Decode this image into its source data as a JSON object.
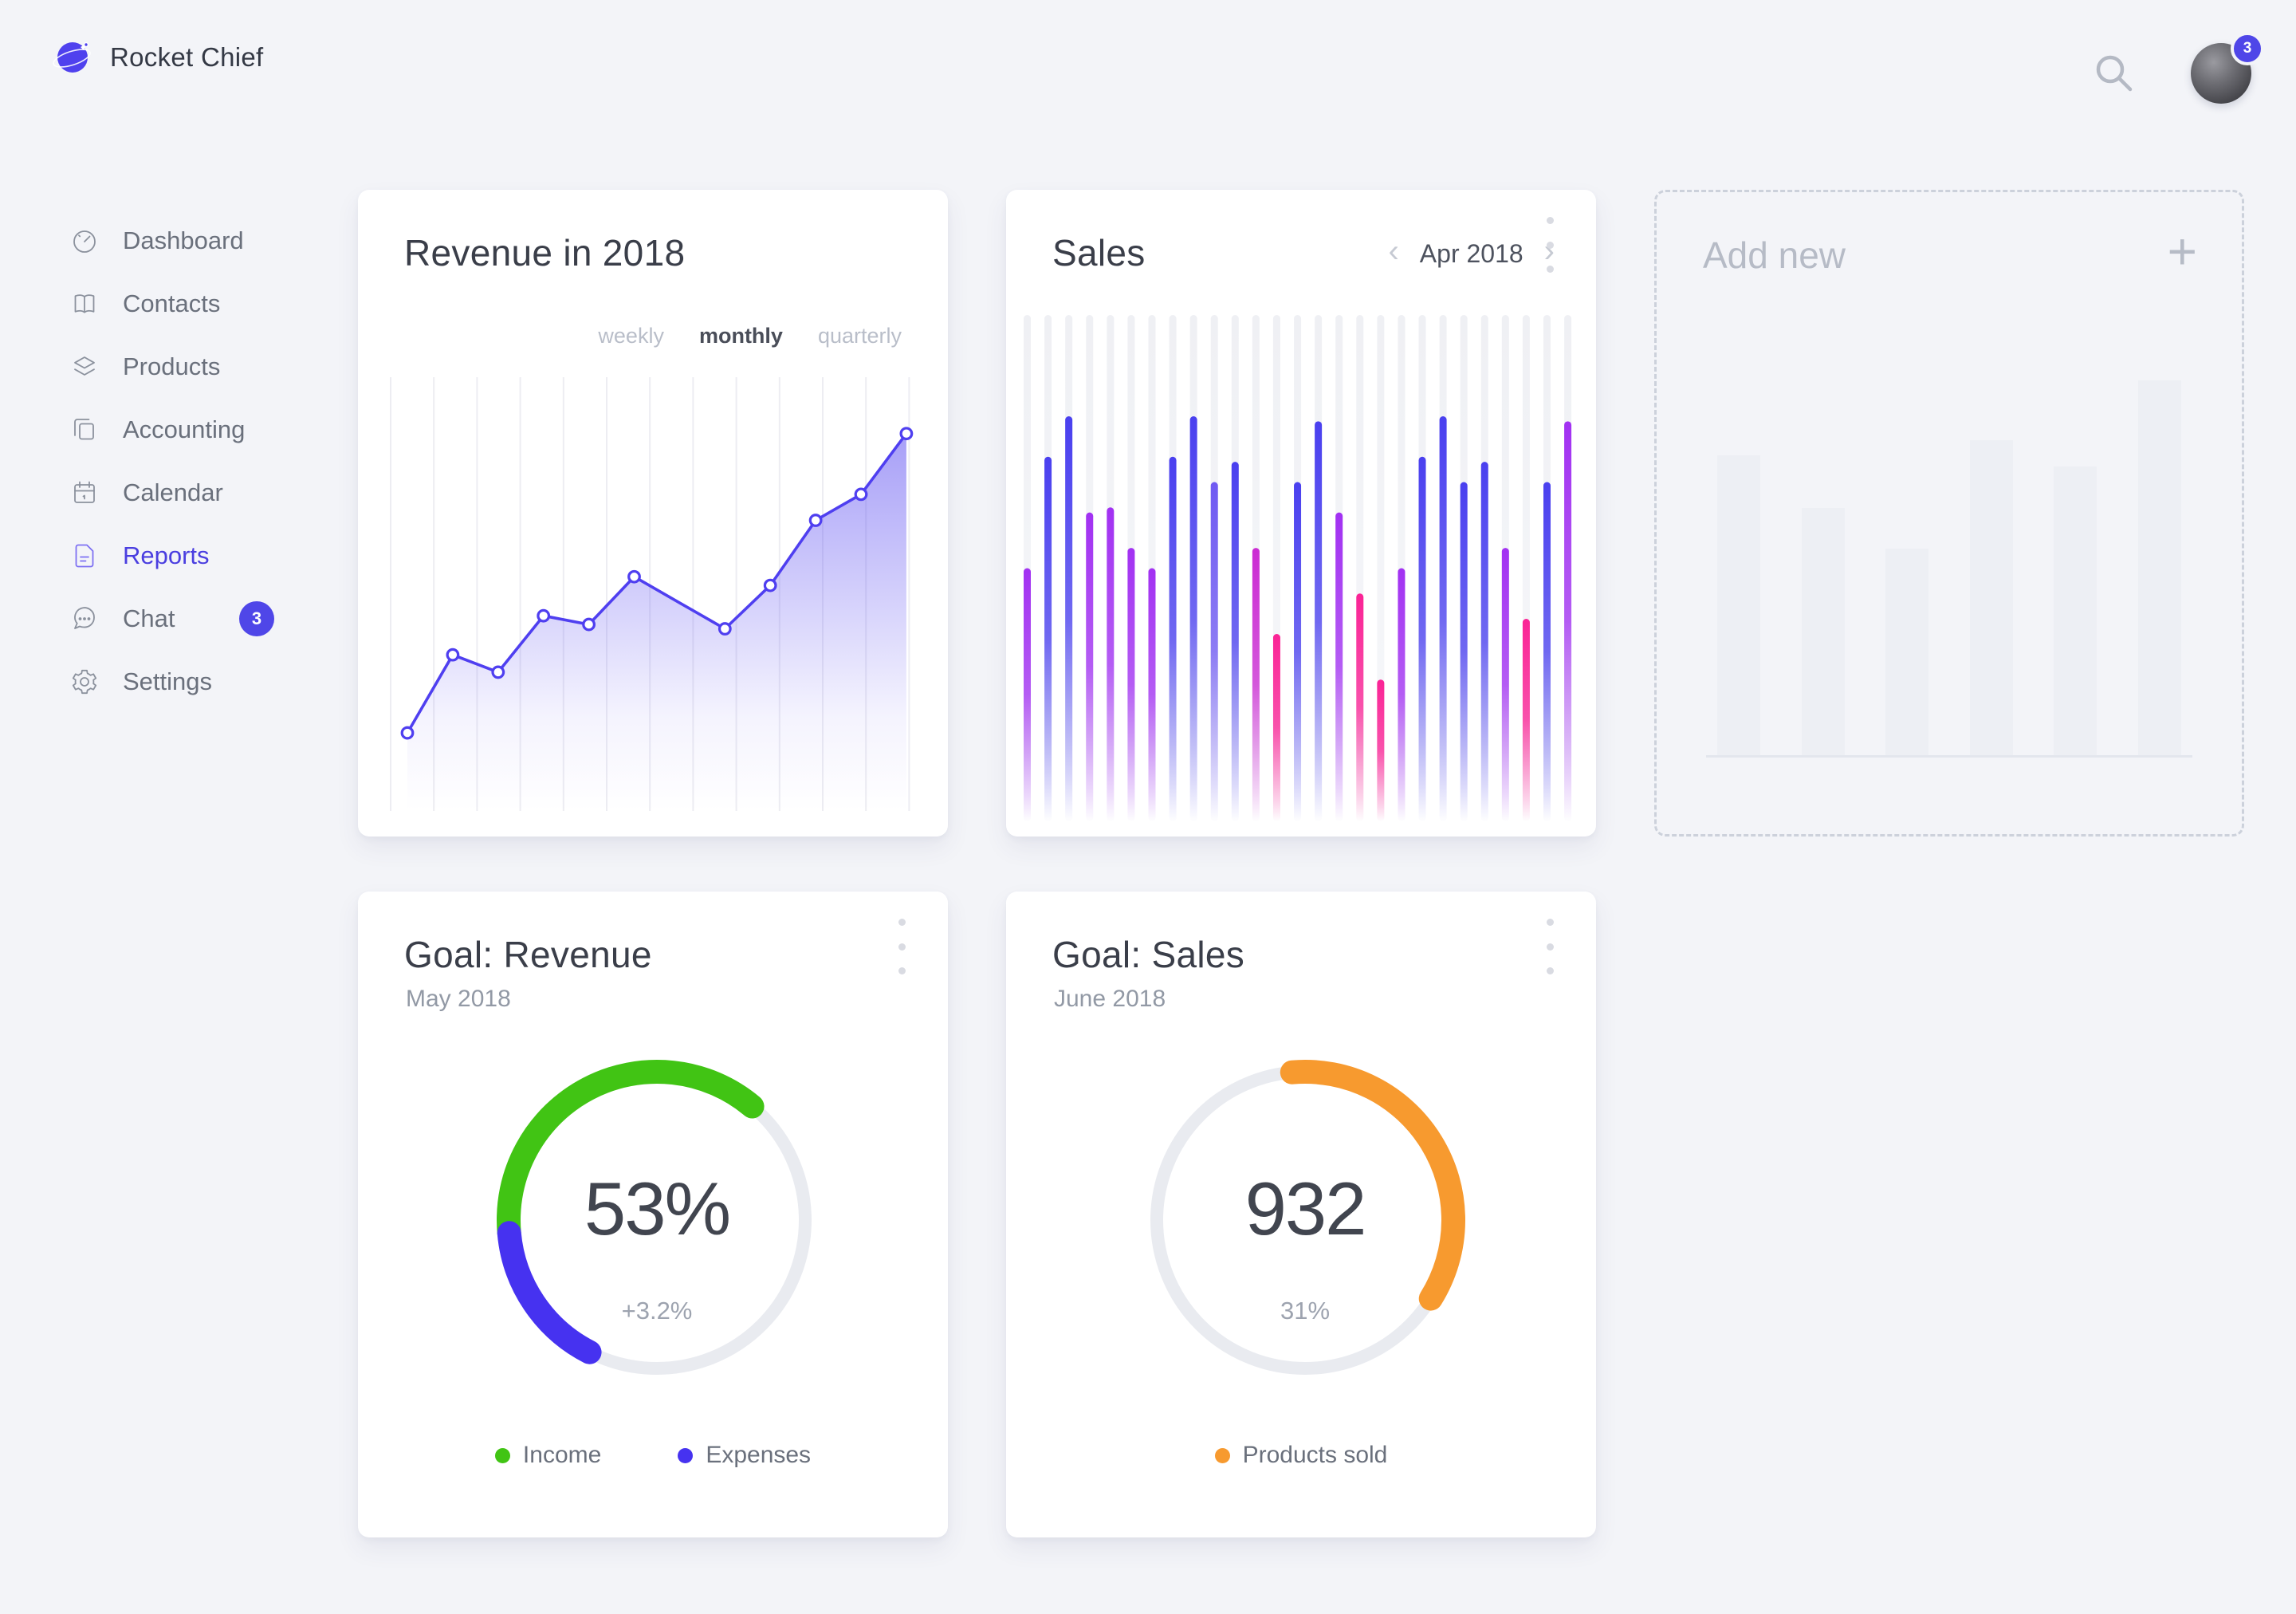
{
  "app": {
    "brand": "Rocket Chief"
  },
  "header": {
    "search_icon": "magnifier",
    "avatar_badge": "3"
  },
  "sidebar": {
    "items": [
      {
        "label": "Dashboard",
        "icon": "gauge-icon",
        "active": false
      },
      {
        "label": "Contacts",
        "icon": "book-icon",
        "active": false
      },
      {
        "label": "Products",
        "icon": "layers-icon",
        "active": false
      },
      {
        "label": "Accounting",
        "icon": "copy-icon",
        "active": false
      },
      {
        "label": "Calendar",
        "icon": "calendar-icon",
        "active": false
      },
      {
        "label": "Reports",
        "icon": "file-icon",
        "active": true
      },
      {
        "label": "Chat",
        "icon": "chat-icon",
        "active": false,
        "badge": "3"
      },
      {
        "label": "Settings",
        "icon": "gear-icon",
        "active": false
      }
    ]
  },
  "colors": {
    "accent": "#4f41ee",
    "line": "#4f3ff0",
    "green": "#41c414",
    "blue_arc": "#4632f0",
    "orange": "#f79a2f",
    "badge": "#4f46e8",
    "grid": "#ededf2",
    "ring": "#e9ebf0",
    "bar_blue": "#4a40ef",
    "bar_violet": "#6f5af2",
    "bar_purple": "#a231f2",
    "bar_magenta": "#cb2bd3",
    "bar_pink": "#fa2395"
  },
  "cards": {
    "revenue": {
      "title": "Revenue in 2018",
      "tabs": [
        {
          "label": "weekly",
          "active": false
        },
        {
          "label": "monthly",
          "active": true
        },
        {
          "label": "quarterly",
          "active": false
        }
      ],
      "chart_data": {
        "type": "line",
        "series": [
          {
            "name": "revenue",
            "values": [
              18,
              36,
              32,
              45,
              43,
              54,
              48,
              42,
              52,
              67,
              73,
              87
            ]
          }
        ],
        "marker_skip_index": 6,
        "gridlines": 13,
        "ylim": [
          0,
          100
        ],
        "note": "values are relative heights in % of plot height; no axis labels shown"
      }
    },
    "sales": {
      "title": "Sales",
      "period": "Apr 2018",
      "prev_icon": "chevron-left",
      "next_icon": "chevron-right",
      "menu_icon": "kebab",
      "chart_data": {
        "type": "bar",
        "ylim": [
          0,
          100
        ],
        "note": "values are relative heights in % of track height; no axis labels shown",
        "bars": [
          {
            "v": 50,
            "c": "purple"
          },
          {
            "v": 72,
            "c": "blue"
          },
          {
            "v": 80,
            "c": "blue"
          },
          {
            "v": 61,
            "c": "purple"
          },
          {
            "v": 62,
            "c": "purple"
          },
          {
            "v": 54,
            "c": "purple"
          },
          {
            "v": 50,
            "c": "purple"
          },
          {
            "v": 72,
            "c": "blue"
          },
          {
            "v": 80,
            "c": "blue"
          },
          {
            "v": 67,
            "c": "violet"
          },
          {
            "v": 71,
            "c": "blue"
          },
          {
            "v": 54,
            "c": "magenta"
          },
          {
            "v": 37,
            "c": "pink"
          },
          {
            "v": 67,
            "c": "blue"
          },
          {
            "v": 79,
            "c": "blue"
          },
          {
            "v": 61,
            "c": "purple"
          },
          {
            "v": 45,
            "c": "pink"
          },
          {
            "v": 28,
            "c": "pink"
          },
          {
            "v": 50,
            "c": "purple"
          },
          {
            "v": 72,
            "c": "blue"
          },
          {
            "v": 80,
            "c": "blue"
          },
          {
            "v": 67,
            "c": "blue"
          },
          {
            "v": 71,
            "c": "blue"
          },
          {
            "v": 54,
            "c": "purple"
          },
          {
            "v": 40,
            "c": "pink"
          },
          {
            "v": 67,
            "c": "blue"
          },
          {
            "v": 79,
            "c": "purple"
          }
        ]
      }
    },
    "add_new": {
      "title": "Add new",
      "plus": "+",
      "chart_data": {
        "type": "bar",
        "note": "gray placeholder preview bars, relative heights %",
        "values": [
          80,
          66,
          55,
          84,
          77,
          100
        ]
      }
    },
    "goal_revenue": {
      "title": "Goal: Revenue",
      "subtitle": "May 2018",
      "value": "53%",
      "delta": "+3.2%",
      "menu_icon": "kebab",
      "legend": [
        {
          "label": "Income",
          "color": "#41c414"
        },
        {
          "label": "Expenses",
          "color": "#4632f0"
        }
      ],
      "chart_data": {
        "type": "donut",
        "displayed_value": "53%",
        "displayed_delta": "+3.2%",
        "arcs": [
          {
            "name": "Income",
            "color": "#41c414",
            "start_deg": 265,
            "end_deg": 400
          },
          {
            "name": "Expenses",
            "color": "#4632f0",
            "start_deg": 207,
            "end_deg": 265
          }
        ]
      }
    },
    "goal_sales": {
      "title": "Goal: Sales",
      "subtitle": "June 2018",
      "value": "932",
      "sub": "31%",
      "menu_icon": "kebab",
      "legend": [
        {
          "label": "Products sold",
          "color": "#f79a2f"
        }
      ],
      "chart_data": {
        "type": "donut",
        "displayed_value": "932",
        "displayed_sub": "31%",
        "arcs": [
          {
            "name": "Products sold",
            "color": "#f79a2f",
            "start_deg": -5,
            "end_deg": 122
          }
        ]
      }
    }
  }
}
